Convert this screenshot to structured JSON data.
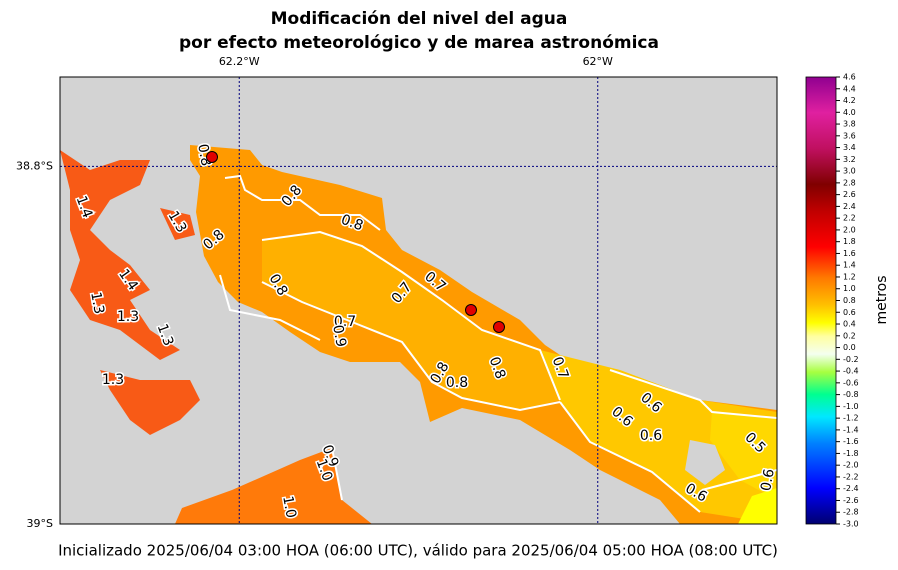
{
  "map": {
    "title": [
      "Modificación del nivel del agua",
      "por efecto meteorológico y de marea astronómica"
    ],
    "lonlim": [
      -62.3,
      -61.9
    ],
    "latlim": [
      -39.0,
      -38.75
    ],
    "lon_ticks": [
      {
        "value": -62.2,
        "label": "62.2°W"
      },
      {
        "value": -62.0,
        "label": "62°W"
      }
    ],
    "lat_ticks": [
      {
        "value": -38.8,
        "label": "38.8°S"
      },
      {
        "value": -39.0,
        "label": "39°S"
      }
    ],
    "contour_labels": [
      "0.8",
      "0.8",
      "0.8",
      "0.8",
      "0.7",
      "0.7",
      "0.8",
      "0.7",
      "0.9",
      "0.8",
      "0.8",
      "0.8",
      "0.7",
      "0.6",
      "0.6",
      "0.6",
      "0.5",
      "0.6",
      "0.6",
      "0.9",
      "1.0",
      "1.0",
      "1.4",
      "1.3",
      "1.4",
      "1.3",
      "1.3",
      "1.3",
      "1.3"
    ],
    "colorbar": {
      "label": "metros",
      "lim": [
        -3.0,
        4.6
      ],
      "ticks": [
        {
          "value": -3.0,
          "label": "-3.0"
        },
        -2.8,
        -2.6,
        -2.4,
        -2.2,
        {
          "value": -2.0,
          "label": "-2.0"
        },
        -1.8,
        -1.6,
        -1.4,
        -1.2,
        {
          "value": -1.0,
          "label": "-1.0"
        },
        -0.8,
        -0.6,
        -0.4,
        -0.2,
        {
          "value": 0.0,
          "label": "0.0"
        },
        0.2,
        0.4,
        0.6,
        0.8,
        {
          "value": 1.0,
          "label": "1.0"
        },
        1.2,
        1.4,
        1.6,
        1.8,
        {
          "value": 2.0,
          "label": "2.0"
        },
        2.2,
        2.4,
        2.6,
        2.8,
        {
          "value": 3.0,
          "label": "3.0"
        },
        3.2,
        3.4,
        3.6,
        3.8,
        {
          "value": 4.0,
          "label": "4.0"
        },
        4.2,
        4.4,
        4.6
      ]
    }
  },
  "footer": "Inicializado 2025/06/04 03:00 HOA (06:00 UTC), válido para 2025/06/04 05:00 HOA (08:00 UTC)"
}
